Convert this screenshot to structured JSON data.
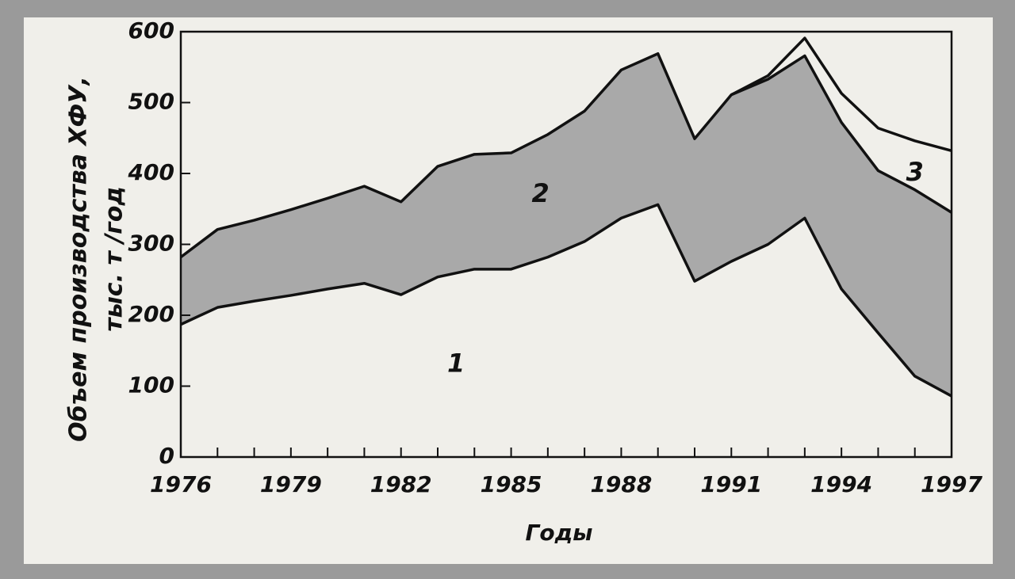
{
  "chart_data": {
    "type": "line",
    "x_label": "Годы",
    "y_label": "Объем производства ХФУ,",
    "y_label_2": "тыс. т /год",
    "x": [
      1976,
      1977,
      1978,
      1979,
      1980,
      1981,
      1982,
      1983,
      1984,
      1985,
      1986,
      1987,
      1988,
      1989,
      1990,
      1991,
      1992,
      1993,
      1994,
      1995,
      1996,
      1997
    ],
    "xlim": [
      1976,
      1997
    ],
    "xticks": [
      1976,
      1979,
      1982,
      1985,
      1988,
      1991,
      1994,
      1997
    ],
    "ylim": [
      0,
      600
    ],
    "yticks": [
      0,
      100,
      200,
      300,
      400,
      500,
      600
    ],
    "series": [
      {
        "name": "1",
        "color": "#111111",
        "values": [
          187,
          211,
          220,
          228,
          237,
          245,
          229,
          254,
          265,
          265,
          282,
          304,
          337,
          356,
          248,
          276,
          300,
          337,
          237,
          175,
          114,
          86
        ]
      },
      {
        "name": "2",
        "color": "#111111",
        "values": [
          282,
          321,
          334,
          349,
          365,
          382,
          360,
          410,
          427,
          429,
          455,
          488,
          546,
          569,
          449,
          511,
          533,
          566,
          472,
          404,
          377,
          345
        ]
      },
      {
        "name": "3",
        "color": "#111111",
        "values": [
          null,
          null,
          null,
          null,
          null,
          null,
          null,
          null,
          null,
          null,
          null,
          null,
          null,
          null,
          null,
          511,
          538,
          591,
          513,
          464,
          446,
          432
        ]
      }
    ],
    "fill_between": {
      "color": "#a9a9a9"
    }
  }
}
